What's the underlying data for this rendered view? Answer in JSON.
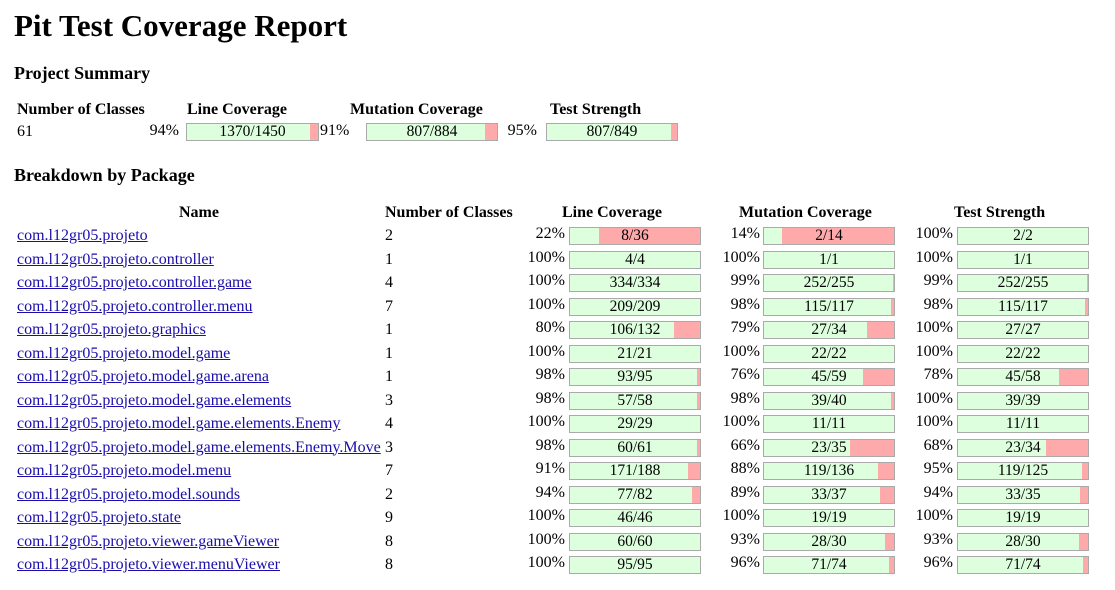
{
  "title": "Pit Test Coverage Report",
  "project_summary": {
    "heading": "Project Summary",
    "headers": {
      "classes": "Number of Classes",
      "line": "Line Coverage",
      "mutation": "Mutation Coverage",
      "strength": "Test Strength"
    },
    "classes": "61",
    "line": {
      "pct": "94%",
      "text": "1370/1450",
      "fraction": 0.94
    },
    "mutation": {
      "pct": "91%",
      "text": "807/884",
      "fraction": 0.91
    },
    "strength": {
      "pct": "95%",
      "text": "807/849",
      "fraction": 0.95
    }
  },
  "breakdown": {
    "heading": "Breakdown by Package",
    "headers": {
      "name": "Name",
      "classes": "Number of Classes",
      "line": "Line Coverage",
      "mutation": "Mutation Coverage",
      "strength": "Test Strength"
    },
    "rows": [
      {
        "name": "com.l12gr05.projeto",
        "classes": "2",
        "line": {
          "pct": "22%",
          "text": "8/36",
          "fraction": 0.22
        },
        "mutation": {
          "pct": "14%",
          "text": "2/14",
          "fraction": 0.14
        },
        "strength": {
          "pct": "100%",
          "text": "2/2",
          "fraction": 1.0
        }
      },
      {
        "name": "com.l12gr05.projeto.controller",
        "classes": "1",
        "line": {
          "pct": "100%",
          "text": "4/4",
          "fraction": 1.0
        },
        "mutation": {
          "pct": "100%",
          "text": "1/1",
          "fraction": 1.0
        },
        "strength": {
          "pct": "100%",
          "text": "1/1",
          "fraction": 1.0
        }
      },
      {
        "name": "com.l12gr05.projeto.controller.game",
        "classes": "4",
        "line": {
          "pct": "100%",
          "text": "334/334",
          "fraction": 1.0
        },
        "mutation": {
          "pct": "99%",
          "text": "252/255",
          "fraction": 0.99
        },
        "strength": {
          "pct": "99%",
          "text": "252/255",
          "fraction": 0.99
        }
      },
      {
        "name": "com.l12gr05.projeto.controller.menu",
        "classes": "7",
        "line": {
          "pct": "100%",
          "text": "209/209",
          "fraction": 1.0
        },
        "mutation": {
          "pct": "98%",
          "text": "115/117",
          "fraction": 0.98
        },
        "strength": {
          "pct": "98%",
          "text": "115/117",
          "fraction": 0.98
        }
      },
      {
        "name": "com.l12gr05.projeto.graphics",
        "classes": "1",
        "line": {
          "pct": "80%",
          "text": "106/132",
          "fraction": 0.8
        },
        "mutation": {
          "pct": "79%",
          "text": "27/34",
          "fraction": 0.79
        },
        "strength": {
          "pct": "100%",
          "text": "27/27",
          "fraction": 1.0
        }
      },
      {
        "name": "com.l12gr05.projeto.model.game",
        "classes": "1",
        "line": {
          "pct": "100%",
          "text": "21/21",
          "fraction": 1.0
        },
        "mutation": {
          "pct": "100%",
          "text": "22/22",
          "fraction": 1.0
        },
        "strength": {
          "pct": "100%",
          "text": "22/22",
          "fraction": 1.0
        }
      },
      {
        "name": "com.l12gr05.projeto.model.game.arena",
        "classes": "1",
        "line": {
          "pct": "98%",
          "text": "93/95",
          "fraction": 0.98
        },
        "mutation": {
          "pct": "76%",
          "text": "45/59",
          "fraction": 0.76
        },
        "strength": {
          "pct": "78%",
          "text": "45/58",
          "fraction": 0.78
        }
      },
      {
        "name": "com.l12gr05.projeto.model.game.elements",
        "classes": "3",
        "line": {
          "pct": "98%",
          "text": "57/58",
          "fraction": 0.98
        },
        "mutation": {
          "pct": "98%",
          "text": "39/40",
          "fraction": 0.98
        },
        "strength": {
          "pct": "100%",
          "text": "39/39",
          "fraction": 1.0
        }
      },
      {
        "name": "com.l12gr05.projeto.model.game.elements.Enemy",
        "classes": "4",
        "line": {
          "pct": "100%",
          "text": "29/29",
          "fraction": 1.0
        },
        "mutation": {
          "pct": "100%",
          "text": "11/11",
          "fraction": 1.0
        },
        "strength": {
          "pct": "100%",
          "text": "11/11",
          "fraction": 1.0
        }
      },
      {
        "name": "com.l12gr05.projeto.model.game.elements.Enemy.Move",
        "classes": "3",
        "line": {
          "pct": "98%",
          "text": "60/61",
          "fraction": 0.98
        },
        "mutation": {
          "pct": "66%",
          "text": "23/35",
          "fraction": 0.66
        },
        "strength": {
          "pct": "68%",
          "text": "23/34",
          "fraction": 0.68
        }
      },
      {
        "name": "com.l12gr05.projeto.model.menu",
        "classes": "7",
        "line": {
          "pct": "91%",
          "text": "171/188",
          "fraction": 0.91
        },
        "mutation": {
          "pct": "88%",
          "text": "119/136",
          "fraction": 0.88
        },
        "strength": {
          "pct": "95%",
          "text": "119/125",
          "fraction": 0.95
        }
      },
      {
        "name": "com.l12gr05.projeto.model.sounds",
        "classes": "2",
        "line": {
          "pct": "94%",
          "text": "77/82",
          "fraction": 0.94
        },
        "mutation": {
          "pct": "89%",
          "text": "33/37",
          "fraction": 0.89
        },
        "strength": {
          "pct": "94%",
          "text": "33/35",
          "fraction": 0.94
        }
      },
      {
        "name": "com.l12gr05.projeto.state",
        "classes": "9",
        "line": {
          "pct": "100%",
          "text": "46/46",
          "fraction": 1.0
        },
        "mutation": {
          "pct": "100%",
          "text": "19/19",
          "fraction": 1.0
        },
        "strength": {
          "pct": "100%",
          "text": "19/19",
          "fraction": 1.0
        }
      },
      {
        "name": "com.l12gr05.projeto.viewer.gameViewer",
        "classes": "8",
        "line": {
          "pct": "100%",
          "text": "60/60",
          "fraction": 1.0
        },
        "mutation": {
          "pct": "93%",
          "text": "28/30",
          "fraction": 0.93
        },
        "strength": {
          "pct": "93%",
          "text": "28/30",
          "fraction": 0.93
        }
      },
      {
        "name": "com.l12gr05.projeto.viewer.menuViewer",
        "classes": "8",
        "line": {
          "pct": "100%",
          "text": "95/95",
          "fraction": 1.0
        },
        "mutation": {
          "pct": "96%",
          "text": "71/74",
          "fraction": 0.96
        },
        "strength": {
          "pct": "96%",
          "text": "71/74",
          "fraction": 0.96
        }
      }
    ]
  }
}
